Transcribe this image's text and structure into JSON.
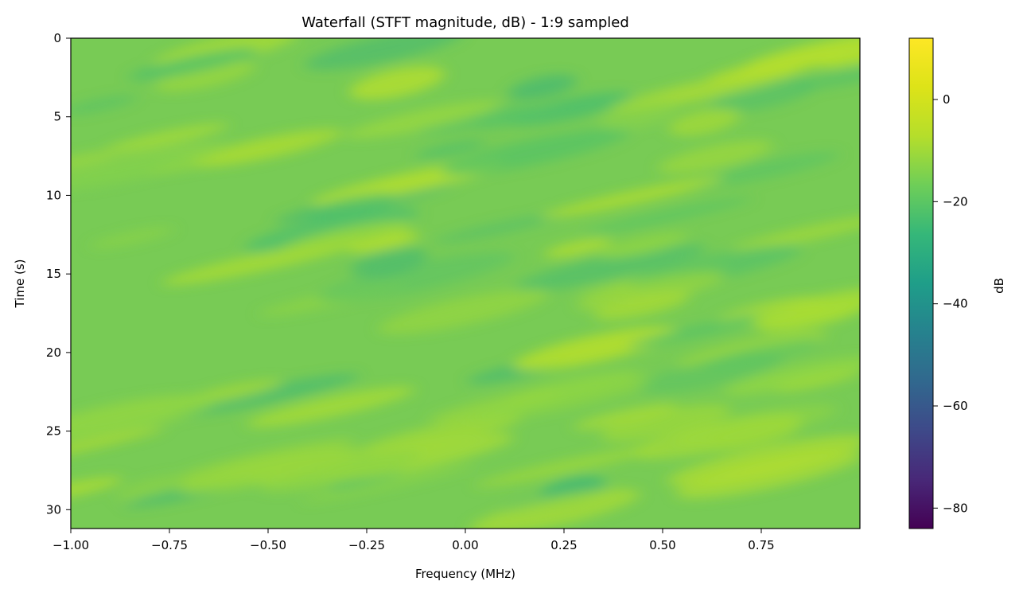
{
  "chart_data": {
    "type": "heatmap",
    "title": "Waterfall (STFT magnitude, dB) - 1:9 sampled",
    "xlabel": "Frequency (MHz)",
    "ylabel": "Time (s)",
    "xlim": [
      -1.0,
      1.0
    ],
    "ylim": [
      31.2,
      0
    ],
    "y_inverted": true,
    "xticks": [
      -1.0,
      -0.75,
      -0.5,
      -0.25,
      0.0,
      0.25,
      0.5,
      0.75
    ],
    "xtick_labels": [
      "−1.00",
      "−0.75",
      "−0.50",
      "−0.25",
      "0.00",
      "0.25",
      "0.50",
      "0.75"
    ],
    "yticks": [
      0,
      5,
      10,
      15,
      20,
      25,
      30
    ],
    "ytick_labels": [
      "0",
      "5",
      "10",
      "15",
      "20",
      "25",
      "30"
    ],
    "colormap": "viridis",
    "colorbar": {
      "label": "dB",
      "range": [
        -84,
        12
      ],
      "ticks": [
        0,
        -20,
        -40,
        -60,
        -80
      ],
      "tick_labels": [
        "0",
        "−20",
        "−40",
        "−60",
        "−80"
      ]
    },
    "value_range_observed": [
      -22,
      2
    ],
    "grid": false
  }
}
